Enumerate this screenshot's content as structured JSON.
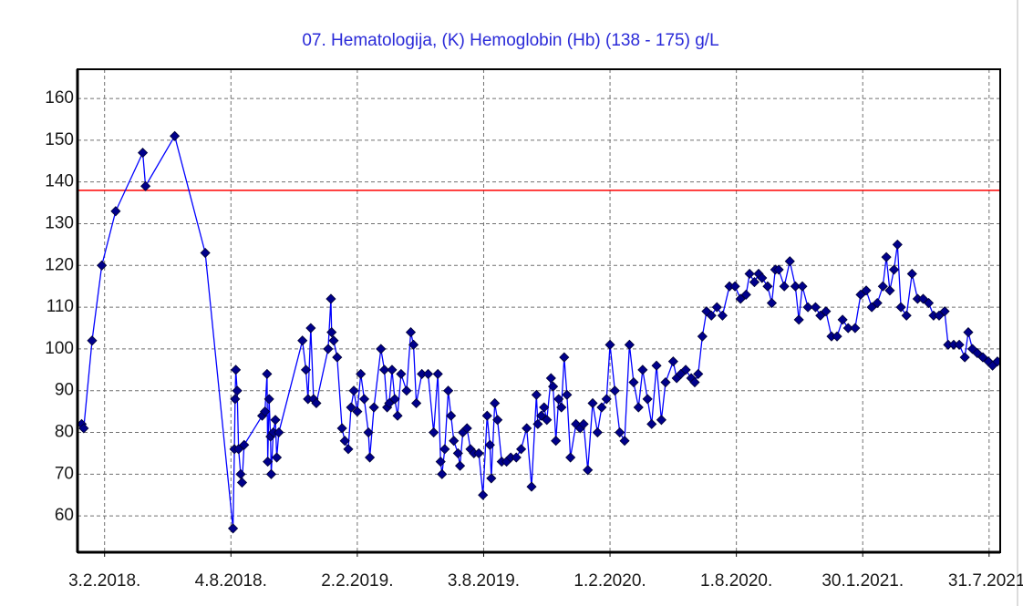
{
  "chart_data": {
    "type": "line",
    "title": "07. Hematologija, (K) Hemoglobin (Hb) (138 - 175) g/L",
    "line_color": "#0000ff",
    "marker_color": "#00008b",
    "grid": true,
    "reference_lines": [
      {
        "value": 138,
        "color": "#ff0000"
      }
    ],
    "xlim": [
      "2017-12-26",
      "2021-08-16"
    ],
    "xticks": [
      {
        "value": "2018-02-03",
        "label": "3.2.2018."
      },
      {
        "value": "2018-08-04",
        "label": "4.8.2018."
      },
      {
        "value": "2019-02-02",
        "label": "2.2.2019."
      },
      {
        "value": "2019-08-03",
        "label": "3.8.2019."
      },
      {
        "value": "2020-02-01",
        "label": "1.2.2020."
      },
      {
        "value": "2020-08-01",
        "label": "1.8.2020."
      },
      {
        "value": "2021-01-30",
        "label": "30.1.2021."
      },
      {
        "value": "2021-07-31",
        "label": "31.7.2021."
      }
    ],
    "ylim": [
      51.3,
      167
    ],
    "yticks": [
      60,
      70,
      80,
      90,
      100,
      110,
      120,
      130,
      140,
      150,
      160
    ],
    "x": [
      "2018-01-01",
      "2018-01-04",
      "2018-01-16",
      "2018-01-30",
      "2018-02-19",
      "2018-03-30",
      "2018-04-03",
      "2018-05-15",
      "2018-06-28",
      "2018-08-07",
      "2018-08-09",
      "2018-08-10",
      "2018-08-11",
      "2018-08-13",
      "2018-08-15",
      "2018-08-18",
      "2018-08-20",
      "2018-08-23",
      "2018-09-18",
      "2018-09-22",
      "2018-09-25",
      "2018-09-26",
      "2018-09-28",
      "2018-09-30",
      "2018-10-01",
      "2018-10-04",
      "2018-10-07",
      "2018-10-09",
      "2018-10-12",
      "2018-11-15",
      "2018-11-20",
      "2018-11-23",
      "2018-11-27",
      "2018-12-01",
      "2018-12-05",
      "2018-12-22",
      "2018-12-26",
      "2018-12-27",
      "2018-12-30",
      "2019-01-04",
      "2019-01-11",
      "2019-01-15",
      "2019-01-20",
      "2019-01-24",
      "2019-01-28",
      "2019-02-02",
      "2019-02-07",
      "2019-02-12",
      "2019-02-18",
      "2019-02-20",
      "2019-02-26",
      "2019-03-08",
      "2019-03-13",
      "2019-03-17",
      "2019-03-20",
      "2019-03-24",
      "2019-03-28",
      "2019-04-01",
      "2019-04-06",
      "2019-04-14",
      "2019-04-20",
      "2019-04-24",
      "2019-04-28",
      "2019-05-06",
      "2019-05-15",
      "2019-05-23",
      "2019-05-29",
      "2019-06-02",
      "2019-06-04",
      "2019-06-08",
      "2019-06-13",
      "2019-06-17",
      "2019-06-21",
      "2019-06-27",
      "2019-06-30",
      "2019-07-04",
      "2019-07-10",
      "2019-07-15",
      "2019-07-20",
      "2019-07-27",
      "2019-08-02",
      "2019-08-08",
      "2019-08-12",
      "2019-08-14",
      "2019-08-19",
      "2019-08-23",
      "2019-08-29",
      "2019-09-05",
      "2019-09-11",
      "2019-09-19",
      "2019-09-26",
      "2019-10-04",
      "2019-10-11",
      "2019-10-18",
      "2019-10-20",
      "2019-10-25",
      "2019-10-29",
      "2019-11-02",
      "2019-11-08",
      "2019-11-11",
      "2019-11-15",
      "2019-11-19",
      "2019-11-23",
      "2019-11-27",
      "2019-12-01",
      "2019-12-06",
      "2019-12-14",
      "2019-12-20",
      "2019-12-25",
      "2019-12-31",
      "2020-01-07",
      "2020-01-14",
      "2020-01-20",
      "2020-01-27",
      "2020-02-01",
      "2020-02-08",
      "2020-02-15",
      "2020-02-22",
      "2020-02-29",
      "2020-03-06",
      "2020-03-13",
      "2020-03-19",
      "2020-03-26",
      "2020-04-01",
      "2020-04-08",
      "2020-04-15",
      "2020-04-21",
      "2020-05-02",
      "2020-05-07",
      "2020-05-13",
      "2020-05-20",
      "2020-05-28",
      "2020-06-02",
      "2020-06-07",
      "2020-06-13",
      "2020-06-19",
      "2020-06-26",
      "2020-07-04",
      "2020-07-12",
      "2020-07-22",
      "2020-07-30",
      "2020-08-07",
      "2020-08-15",
      "2020-08-20",
      "2020-08-27",
      "2020-09-02",
      "2020-09-07",
      "2020-09-15",
      "2020-09-21",
      "2020-09-26",
      "2020-10-01",
      "2020-10-09",
      "2020-10-17",
      "2020-10-25",
      "2020-10-30",
      "2020-11-04",
      "2020-11-12",
      "2020-11-23",
      "2020-11-30",
      "2020-12-08",
      "2020-12-16",
      "2020-12-24",
      "2021-01-01",
      "2021-01-09",
      "2021-01-19",
      "2021-01-27",
      "2021-02-04",
      "2021-02-12",
      "2021-02-20",
      "2021-02-28",
      "2021-03-05",
      "2021-03-10",
      "2021-03-16",
      "2021-03-21",
      "2021-03-26",
      "2021-04-03",
      "2021-04-11",
      "2021-04-19",
      "2021-04-27",
      "2021-05-05",
      "2021-05-12",
      "2021-05-20",
      "2021-05-28",
      "2021-06-02",
      "2021-06-10",
      "2021-06-18",
      "2021-06-26",
      "2021-07-01",
      "2021-07-07",
      "2021-07-14",
      "2021-07-22",
      "2021-07-30",
      "2021-08-05",
      "2021-08-12"
    ],
    "values": [
      82,
      81,
      102,
      120,
      133,
      147,
      139,
      151,
      123,
      57,
      76,
      88,
      95,
      90,
      76,
      70,
      68,
      77,
      84,
      85,
      94,
      73,
      88,
      79,
      70,
      80,
      83,
      74,
      80,
      102,
      95,
      88,
      105,
      88,
      87,
      100,
      112,
      104,
      102,
      98,
      81,
      78,
      76,
      86,
      90,
      85,
      94,
      88,
      80,
      74,
      86,
      100,
      95,
      86,
      87,
      95,
      88,
      84,
      94,
      90,
      104,
      101,
      87,
      94,
      94,
      80,
      94,
      73,
      70,
      76,
      90,
      84,
      78,
      75,
      72,
      80,
      81,
      76,
      75,
      75,
      65,
      84,
      77,
      69,
      87,
      83,
      73,
      73,
      74,
      74,
      76,
      81,
      67,
      89,
      82,
      84,
      86,
      83,
      93,
      91,
      78,
      88,
      86,
      98,
      89,
      74,
      82,
      81,
      82,
      71,
      87,
      80,
      86,
      88,
      101,
      90,
      80,
      78,
      101,
      92,
      86,
      95,
      88,
      82,
      96,
      83,
      92,
      97,
      93,
      94,
      95,
      93,
      92,
      94,
      103,
      109,
      108,
      110,
      108,
      115,
      115,
      112,
      113,
      118,
      116,
      118,
      117,
      115,
      111,
      119,
      119,
      115,
      121,
      115,
      107,
      115,
      110,
      110,
      108,
      109,
      103,
      103,
      107,
      105,
      105,
      113,
      114,
      110,
      111,
      115,
      122,
      114,
      119,
      125,
      110,
      108,
      118,
      112,
      112,
      111,
      108,
      108,
      109,
      101,
      101,
      101,
      98,
      104,
      100,
      99,
      98,
      97,
      96,
      97
    ]
  }
}
